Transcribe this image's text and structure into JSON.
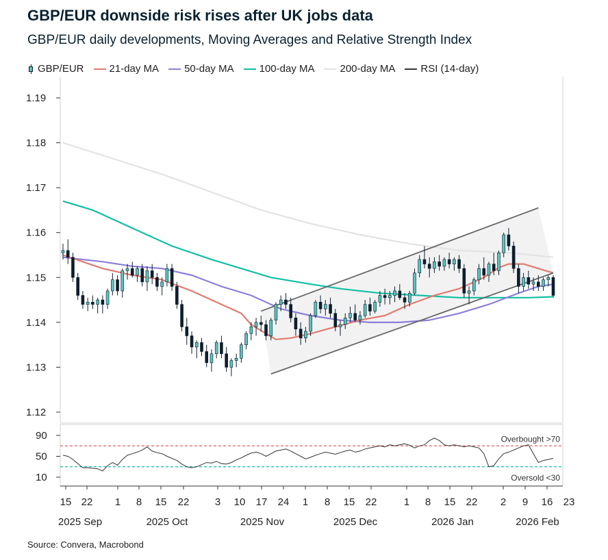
{
  "title": "GBP/EUR downside risk rises after UK jobs data",
  "subtitle": "GBP/EUR daily developments, Moving Averages and Relative Strength Index",
  "source": "Source: Convera, Macrobond",
  "colors": {
    "candle_up": "#5bc1be",
    "candle_down": "#0d1e2d",
    "ma21": "#e07b70",
    "ma50": "#8b7fdc",
    "ma100": "#12bfa4",
    "ma200": "#e3e3e3",
    "rsi": "#333333",
    "overbought": "#e06060",
    "oversold": "#12bfa4",
    "channel": "#666666"
  },
  "legend": [
    {
      "label": "GBP/EUR",
      "icon": "candlestick-icon",
      "color": "#5bc1be"
    },
    {
      "label": "21-day MA",
      "color": "#e07b70"
    },
    {
      "label": "50-day MA",
      "color": "#8b7fdc"
    },
    {
      "label": "100-day MA",
      "color": "#12bfa4"
    },
    {
      "label": "200-day MA",
      "color": "#e3e3e3"
    },
    {
      "label": "RSI (14-day)",
      "color": "#333333"
    }
  ],
  "chart_data": [
    {
      "type": "candlestick",
      "series_name": "GBP/EUR",
      "ylim": [
        1.12,
        1.19
      ],
      "yticks": [
        "1.12",
        "1.13",
        "1.14",
        "1.15",
        "1.16",
        "1.17",
        "1.18",
        "1.19"
      ],
      "xticks": [
        "15",
        "22",
        "1",
        "8",
        "15",
        "22",
        "3",
        "10",
        "17",
        "24",
        "1",
        "8",
        "15",
        "22",
        "1",
        "8",
        "15",
        "22",
        "2",
        "9",
        "16",
        "23"
      ],
      "xgroups": [
        "2025 Sep",
        "2025 Oct",
        "2025 Nov",
        "2025 Dec",
        "2026 Jan",
        "2026 Feb"
      ],
      "ohlc": [
        [
          1.1555,
          1.1575,
          1.154,
          1.156
        ],
        [
          1.156,
          1.1585,
          1.153,
          1.1545
        ],
        [
          1.1545,
          1.1555,
          1.149,
          1.15
        ],
        [
          1.15,
          1.151,
          1.145,
          1.146
        ],
        [
          1.146,
          1.147,
          1.143,
          1.144
        ],
        [
          1.144,
          1.1455,
          1.1425,
          1.1445
        ],
        [
          1.1445,
          1.146,
          1.143,
          1.144
        ],
        [
          1.144,
          1.1455,
          1.142,
          1.145
        ],
        [
          1.145,
          1.146,
          1.142,
          1.144
        ],
        [
          1.144,
          1.1475,
          1.143,
          1.147
        ],
        [
          1.147,
          1.151,
          1.146,
          1.1495
        ],
        [
          1.1495,
          1.1505,
          1.146,
          1.147
        ],
        [
          1.147,
          1.152,
          1.1455,
          1.1515
        ],
        [
          1.1515,
          1.153,
          1.1495,
          1.152
        ],
        [
          1.152,
          1.1535,
          1.15,
          1.1505
        ],
        [
          1.1505,
          1.1525,
          1.149,
          1.152
        ],
        [
          1.152,
          1.153,
          1.148,
          1.149
        ],
        [
          1.149,
          1.1525,
          1.147,
          1.1515
        ],
        [
          1.1515,
          1.153,
          1.1485,
          1.15
        ],
        [
          1.15,
          1.151,
          1.147,
          1.148
        ],
        [
          1.148,
          1.15,
          1.146,
          1.149
        ],
        [
          1.149,
          1.153,
          1.148,
          1.152
        ],
        [
          1.152,
          1.153,
          1.147,
          1.148
        ],
        [
          1.148,
          1.149,
          1.143,
          1.144
        ],
        [
          1.144,
          1.145,
          1.138,
          1.139
        ],
        [
          1.139,
          1.141,
          1.135,
          1.137
        ],
        [
          1.137,
          1.138,
          1.133,
          1.1345
        ],
        [
          1.1345,
          1.136,
          1.132,
          1.1355
        ],
        [
          1.1355,
          1.1365,
          1.1325,
          1.1335
        ],
        [
          1.1335,
          1.135,
          1.13,
          1.131
        ],
        [
          1.131,
          1.134,
          1.129,
          1.133
        ],
        [
          1.133,
          1.136,
          1.132,
          1.1355
        ],
        [
          1.1355,
          1.137,
          1.132,
          1.133
        ],
        [
          1.133,
          1.1345,
          1.129,
          1.13
        ],
        [
          1.13,
          1.132,
          1.128,
          1.1315
        ],
        [
          1.1315,
          1.133,
          1.13,
          1.132
        ],
        [
          1.132,
          1.1355,
          1.131,
          1.135
        ],
        [
          1.135,
          1.138,
          1.134,
          1.1375
        ],
        [
          1.1375,
          1.14,
          1.136,
          1.139
        ],
        [
          1.139,
          1.141,
          1.137,
          1.14
        ],
        [
          1.14,
          1.1415,
          1.138,
          1.1395
        ],
        [
          1.1395,
          1.1405,
          1.136,
          1.137
        ],
        [
          1.137,
          1.141,
          1.136,
          1.1405
        ],
        [
          1.1405,
          1.1445,
          1.1395,
          1.144
        ],
        [
          1.144,
          1.146,
          1.1425,
          1.145
        ],
        [
          1.145,
          1.1465,
          1.143,
          1.144
        ],
        [
          1.144,
          1.1455,
          1.14,
          1.141
        ],
        [
          1.141,
          1.142,
          1.137,
          1.1385
        ],
        [
          1.1385,
          1.14,
          1.135,
          1.1365
        ],
        [
          1.1365,
          1.139,
          1.1355,
          1.138
        ],
        [
          1.138,
          1.142,
          1.137,
          1.1415
        ],
        [
          1.1415,
          1.145,
          1.141,
          1.1445
        ],
        [
          1.1445,
          1.146,
          1.142,
          1.143
        ],
        [
          1.143,
          1.145,
          1.1415,
          1.144
        ],
        [
          1.144,
          1.1455,
          1.141,
          1.142
        ],
        [
          1.142,
          1.143,
          1.138,
          1.139
        ],
        [
          1.139,
          1.1405,
          1.137,
          1.1395
        ],
        [
          1.1395,
          1.142,
          1.1385,
          1.141
        ],
        [
          1.141,
          1.1435,
          1.14,
          1.142
        ],
        [
          1.142,
          1.144,
          1.14,
          1.1405
        ],
        [
          1.1405,
          1.1425,
          1.1395,
          1.1415
        ],
        [
          1.1415,
          1.145,
          1.141,
          1.144
        ],
        [
          1.144,
          1.1455,
          1.1415,
          1.1425
        ],
        [
          1.1425,
          1.145,
          1.142,
          1.1445
        ],
        [
          1.1445,
          1.147,
          1.1435,
          1.146
        ],
        [
          1.146,
          1.1475,
          1.144,
          1.1455
        ],
        [
          1.1455,
          1.147,
          1.144,
          1.146
        ],
        [
          1.146,
          1.148,
          1.1445,
          1.147
        ],
        [
          1.147,
          1.1485,
          1.145,
          1.1455
        ],
        [
          1.1455,
          1.1465,
          1.143,
          1.1445
        ],
        [
          1.1445,
          1.147,
          1.1435,
          1.1465
        ],
        [
          1.1465,
          1.152,
          1.146,
          1.151
        ],
        [
          1.151,
          1.155,
          1.15,
          1.154
        ],
        [
          1.154,
          1.157,
          1.152,
          1.153
        ],
        [
          1.153,
          1.1545,
          1.15,
          1.152
        ],
        [
          1.152,
          1.1545,
          1.151,
          1.1535
        ],
        [
          1.1535,
          1.155,
          1.1515,
          1.1525
        ],
        [
          1.1525,
          1.1545,
          1.1515,
          1.154
        ],
        [
          1.154,
          1.1555,
          1.152,
          1.153
        ],
        [
          1.153,
          1.1545,
          1.1515,
          1.154
        ],
        [
          1.154,
          1.155,
          1.151,
          1.152
        ],
        [
          1.152,
          1.153,
          1.1455,
          1.1465
        ],
        [
          1.1465,
          1.148,
          1.144,
          1.147
        ],
        [
          1.147,
          1.15,
          1.146,
          1.1495
        ],
        [
          1.1495,
          1.153,
          1.1485,
          1.152
        ],
        [
          1.152,
          1.1545,
          1.1495,
          1.1505
        ],
        [
          1.1505,
          1.1535,
          1.149,
          1.153
        ],
        [
          1.153,
          1.1555,
          1.1505,
          1.1515
        ],
        [
          1.1515,
          1.156,
          1.1505,
          1.1555
        ],
        [
          1.1555,
          1.16,
          1.1545,
          1.1595
        ],
        [
          1.1595,
          1.161,
          1.156,
          1.157
        ],
        [
          1.157,
          1.158,
          1.151,
          1.152
        ],
        [
          1.152,
          1.153,
          1.1465,
          1.148
        ],
        [
          1.148,
          1.151,
          1.147,
          1.15
        ],
        [
          1.15,
          1.1515,
          1.1475,
          1.1485
        ],
        [
          1.1485,
          1.15,
          1.147,
          1.149
        ],
        [
          1.149,
          1.1505,
          1.147,
          1.148
        ],
        [
          1.148,
          1.15,
          1.147,
          1.1495
        ],
        [
          1.1495,
          1.1505,
          1.148,
          1.15
        ],
        [
          1.15,
          1.1505,
          1.1455,
          1.146
        ]
      ],
      "ma21": [
        [
          0,
          1.155
        ],
        [
          8,
          1.152
        ],
        [
          14,
          1.1505
        ],
        [
          20,
          1.1495
        ],
        [
          26,
          1.147
        ],
        [
          32,
          1.144
        ],
        [
          36,
          1.142
        ],
        [
          38,
          1.1395
        ],
        [
          41,
          1.1375
        ],
        [
          43,
          1.1362
        ],
        [
          46,
          1.1365
        ],
        [
          50,
          1.1375
        ],
        [
          55,
          1.139
        ],
        [
          60,
          1.1405
        ],
        [
          65,
          1.1415
        ],
        [
          70,
          1.144
        ],
        [
          75,
          1.146
        ],
        [
          80,
          1.1475
        ],
        [
          85,
          1.15
        ],
        [
          88,
          1.1522
        ],
        [
          90,
          1.153
        ],
        [
          93,
          1.153
        ],
        [
          96,
          1.152
        ],
        [
          99,
          1.151
        ]
      ],
      "ma50": [
        [
          0,
          1.1545
        ],
        [
          8,
          1.1535
        ],
        [
          14,
          1.1525
        ],
        [
          20,
          1.152
        ],
        [
          26,
          1.1505
        ],
        [
          32,
          1.148
        ],
        [
          38,
          1.146
        ],
        [
          44,
          1.143
        ],
        [
          50,
          1.1415
        ],
        [
          56,
          1.1405
        ],
        [
          62,
          1.14
        ],
        [
          68,
          1.14
        ],
        [
          74,
          1.1405
        ],
        [
          80,
          1.142
        ],
        [
          86,
          1.144
        ],
        [
          92,
          1.1465
        ],
        [
          96,
          1.148
        ],
        [
          99,
          1.1485
        ]
      ],
      "ma100": [
        [
          0,
          1.167
        ],
        [
          6,
          1.165
        ],
        [
          14,
          1.161
        ],
        [
          22,
          1.157
        ],
        [
          30,
          1.154
        ],
        [
          36,
          1.152
        ],
        [
          42,
          1.15
        ],
        [
          50,
          1.1485
        ],
        [
          56,
          1.1475
        ],
        [
          64,
          1.1465
        ],
        [
          72,
          1.146
        ],
        [
          80,
          1.1455
        ],
        [
          88,
          1.1455
        ],
        [
          94,
          1.1455
        ],
        [
          99,
          1.1457
        ]
      ],
      "ma200": [
        [
          0,
          1.18
        ],
        [
          10,
          1.1765
        ],
        [
          20,
          1.173
        ],
        [
          30,
          1.169
        ],
        [
          40,
          1.165
        ],
        [
          50,
          1.162
        ],
        [
          60,
          1.1595
        ],
        [
          70,
          1.1575
        ],
        [
          80,
          1.156
        ],
        [
          90,
          1.1555
        ],
        [
          99,
          1.1545
        ]
      ],
      "channel": {
        "upper": [
          [
            40,
            1.1425
          ],
          [
            96,
            1.1655
          ]
        ],
        "lower": [
          [
            42,
            1.1285
          ],
          [
            99,
            1.151
          ]
        ]
      }
    },
    {
      "type": "line",
      "series_name": "RSI (14-day)",
      "ylim": [
        0,
        100
      ],
      "yticks": [
        "10",
        "50",
        "90"
      ],
      "overbought": 70,
      "oversold": 30,
      "overbought_label": "Overbought >70",
      "oversold_label": "Oversold <30",
      "values": [
        52,
        50,
        44,
        36,
        28,
        28,
        27,
        26,
        22,
        32,
        38,
        33,
        44,
        52,
        55,
        58,
        62,
        68,
        60,
        57,
        55,
        50,
        46,
        42,
        35,
        30,
        28,
        30,
        34,
        38,
        37,
        40,
        36,
        35,
        38,
        43,
        47,
        52,
        56,
        58,
        55,
        50,
        55,
        60,
        62,
        64,
        60,
        55,
        50,
        45,
        48,
        52,
        55,
        58,
        56,
        54,
        57,
        60,
        62,
        58,
        60,
        64,
        66,
        68,
        70,
        68,
        72,
        70,
        72,
        74,
        71,
        66,
        70,
        72,
        80,
        85,
        80,
        72,
        70,
        72,
        70,
        68,
        70,
        68,
        66,
        55,
        30,
        32,
        45,
        55,
        58,
        62,
        66,
        70,
        72,
        55,
        38,
        42,
        44,
        46
      ]
    }
  ]
}
